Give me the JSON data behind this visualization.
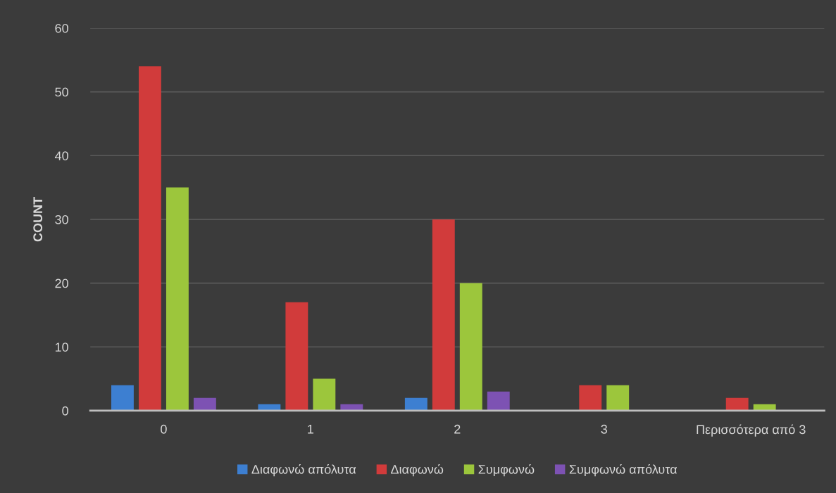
{
  "chart_data": {
    "type": "bar",
    "ylabel": "COUNT",
    "categories": [
      "0",
      "1",
      "2",
      "3",
      "Περισσότερα από 3"
    ],
    "series": [
      {
        "name": "Διαφωνώ απόλυτα",
        "color": "#3d7fd1",
        "values": [
          4,
          1,
          2,
          null,
          null
        ]
      },
      {
        "name": "Διαφωνώ",
        "color": "#d13b3b",
        "values": [
          54,
          17,
          30,
          4,
          2
        ]
      },
      {
        "name": "Συμφωνώ",
        "color": "#9cc63c",
        "values": [
          35,
          5,
          20,
          4,
          1
        ]
      },
      {
        "name": "Συμφωνώ απόλυτα",
        "color": "#7d52b3",
        "values": [
          2,
          1,
          3,
          null,
          null
        ]
      }
    ],
    "ylim": [
      0,
      60
    ],
    "yticks": [
      0,
      10,
      20,
      30,
      40,
      50,
      60
    ],
    "grid": "y",
    "legend": "bottom"
  }
}
